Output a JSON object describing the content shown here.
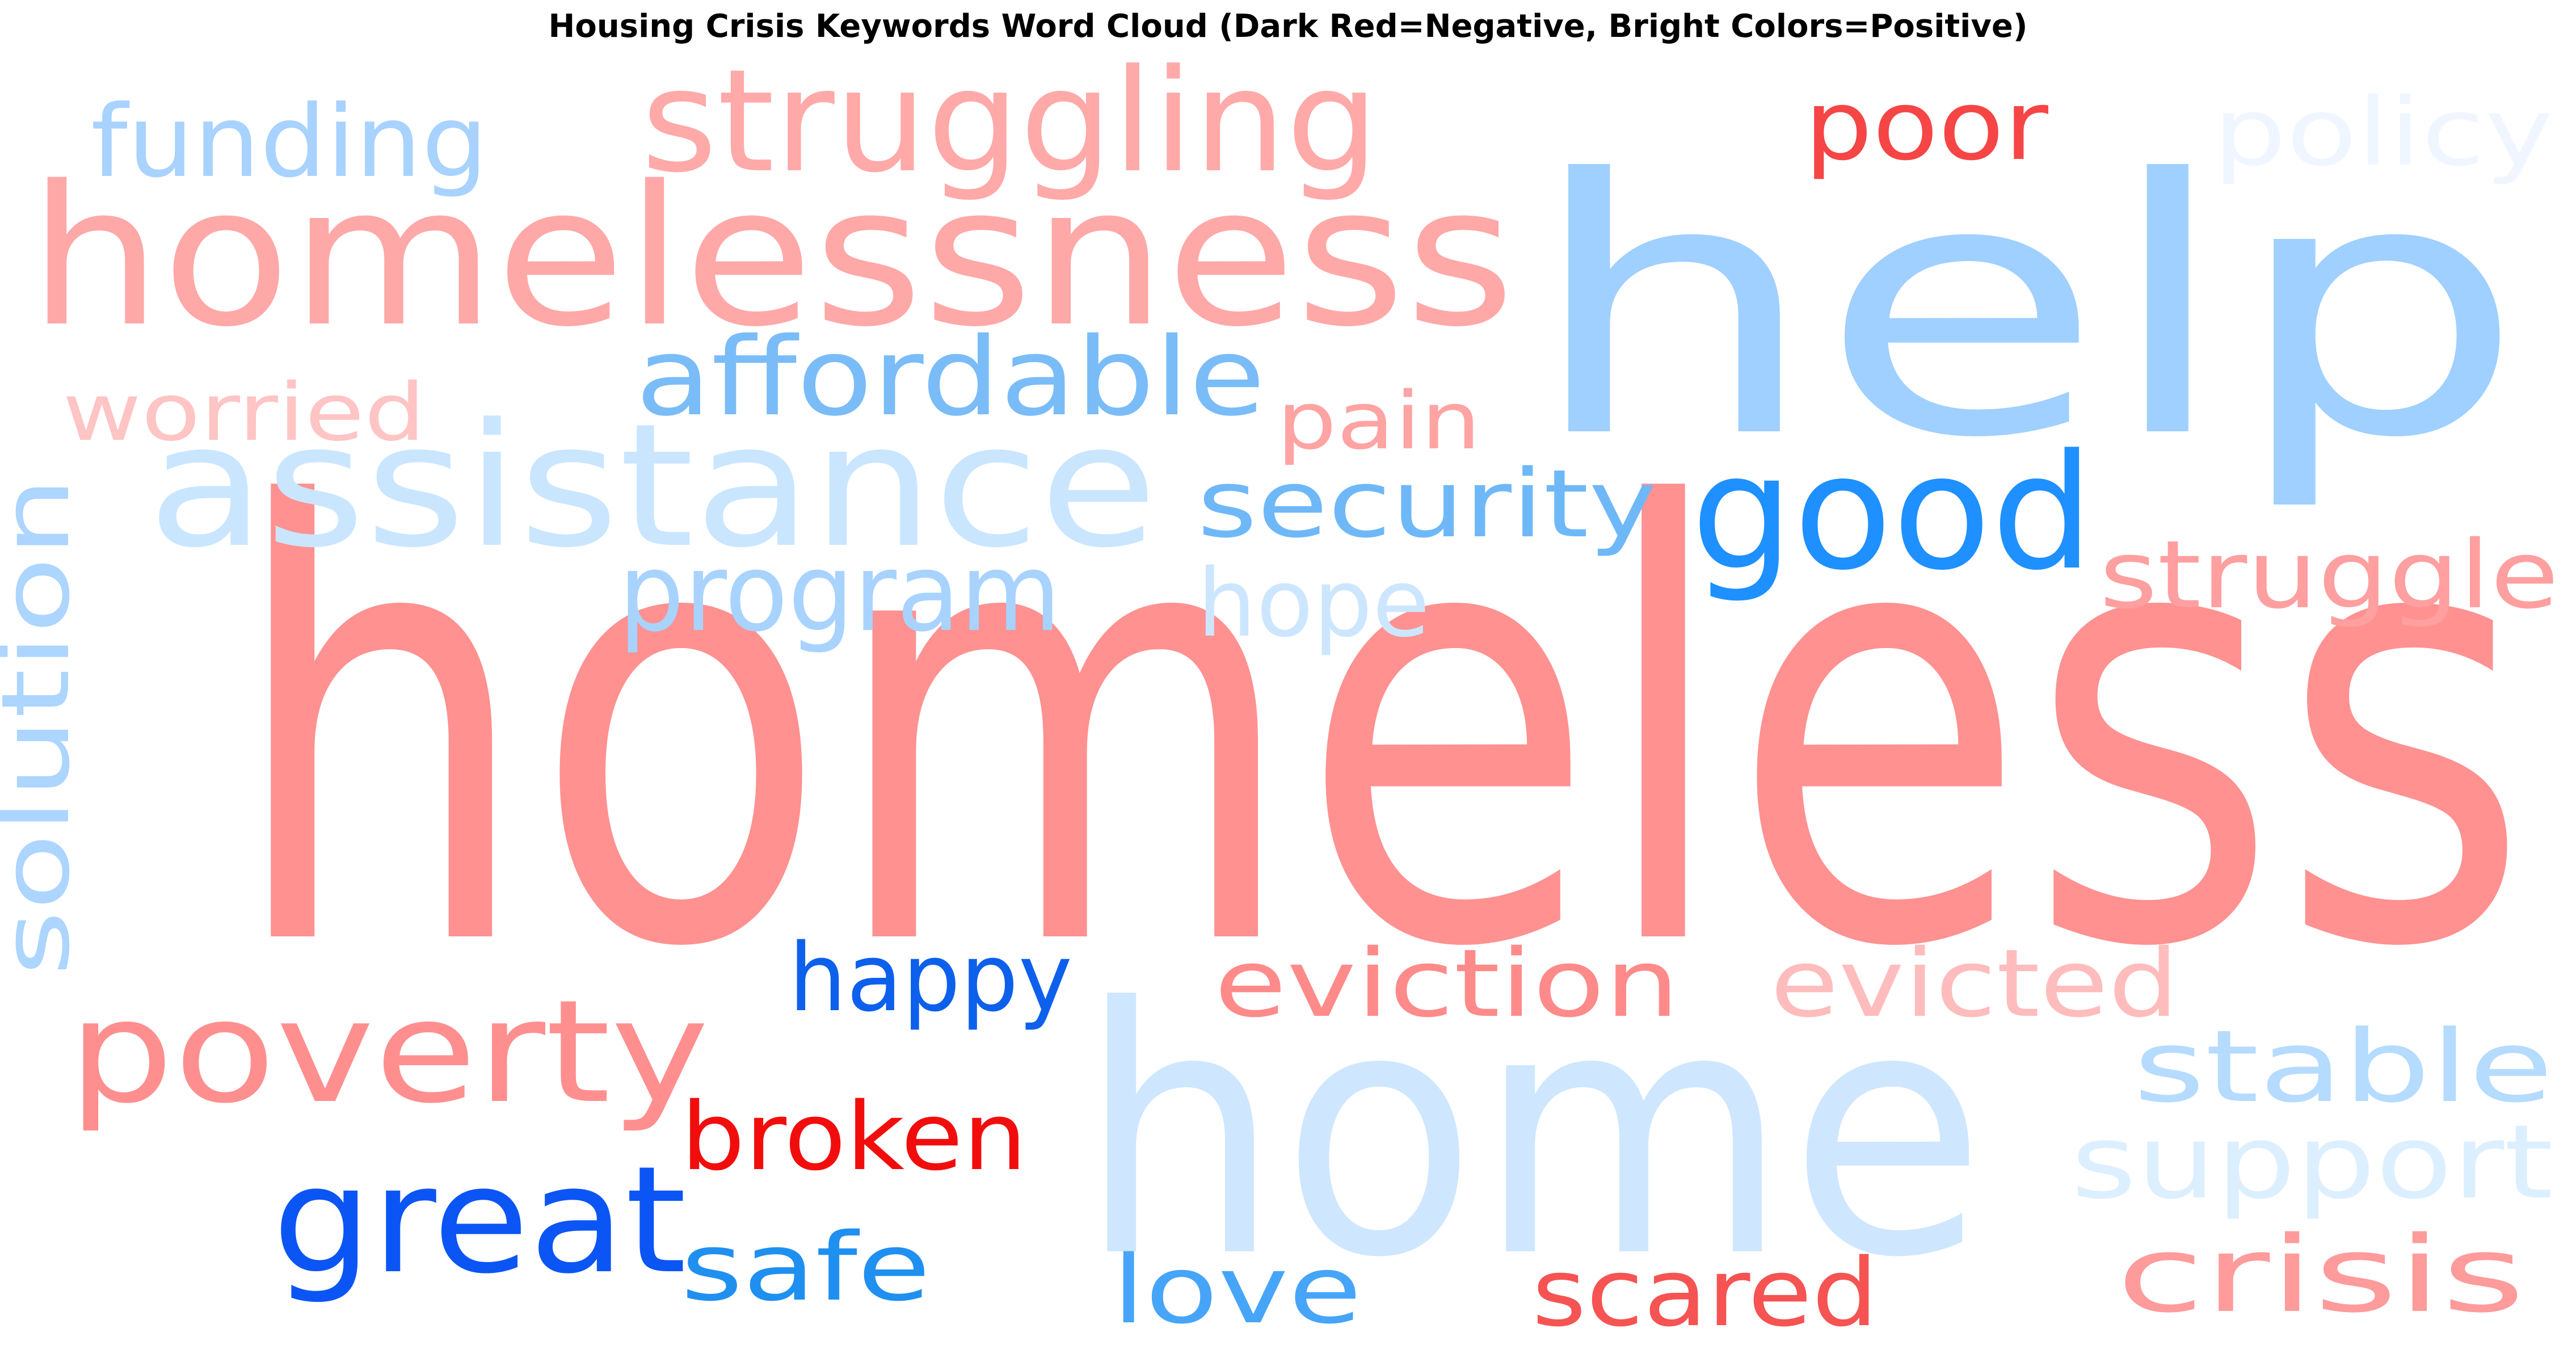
{
  "title": "Housing Crisis Keywords Word Cloud (Dark Red=Negative, Bright Colors=Positive)",
  "words": [
    {
      "text": "homeless",
      "color": "#ff9191"
    },
    {
      "text": "help",
      "color": "#9fd0ff"
    },
    {
      "text": "home",
      "color": "#cfe6ff"
    },
    {
      "text": "homelessness",
      "color": "#ffa8a8"
    },
    {
      "text": "assistance",
      "color": "#cae6ff"
    },
    {
      "text": "struggling",
      "color": "#ffa9a9"
    },
    {
      "text": "good",
      "color": "#1e90ff"
    },
    {
      "text": "poverty",
      "color": "#ff8f8f"
    },
    {
      "text": "great",
      "color": "#0b55f5"
    },
    {
      "text": "affordable",
      "color": "#7abcf7"
    },
    {
      "text": "funding",
      "color": "#a8d2ff"
    },
    {
      "text": "poor",
      "color": "#f64545"
    },
    {
      "text": "policy",
      "color": "#eff6ff"
    },
    {
      "text": "worried",
      "color": "#ffc4c4"
    },
    {
      "text": "pain",
      "color": "#ffa3a3"
    },
    {
      "text": "security",
      "color": "#6fb8f8"
    },
    {
      "text": "struggle",
      "color": "#ff9f9f"
    },
    {
      "text": "solution",
      "color": "#acd5ff"
    },
    {
      "text": "program",
      "color": "#a8d3ff"
    },
    {
      "text": "hope",
      "color": "#cde6ff"
    },
    {
      "text": "happy",
      "color": "#0d60ec"
    },
    {
      "text": "eviction",
      "color": "#ff8a8a"
    },
    {
      "text": "evicted",
      "color": "#ffbcbc"
    },
    {
      "text": "stable",
      "color": "#b5dbff"
    },
    {
      "text": "support",
      "color": "#dcefff"
    },
    {
      "text": "broken",
      "color": "#f20d0d"
    },
    {
      "text": "safe",
      "color": "#1f90f0"
    },
    {
      "text": "love",
      "color": "#46a5f8"
    },
    {
      "text": "scared",
      "color": "#f65353"
    },
    {
      "text": "crisis",
      "color": "#ff9b9b"
    }
  ]
}
